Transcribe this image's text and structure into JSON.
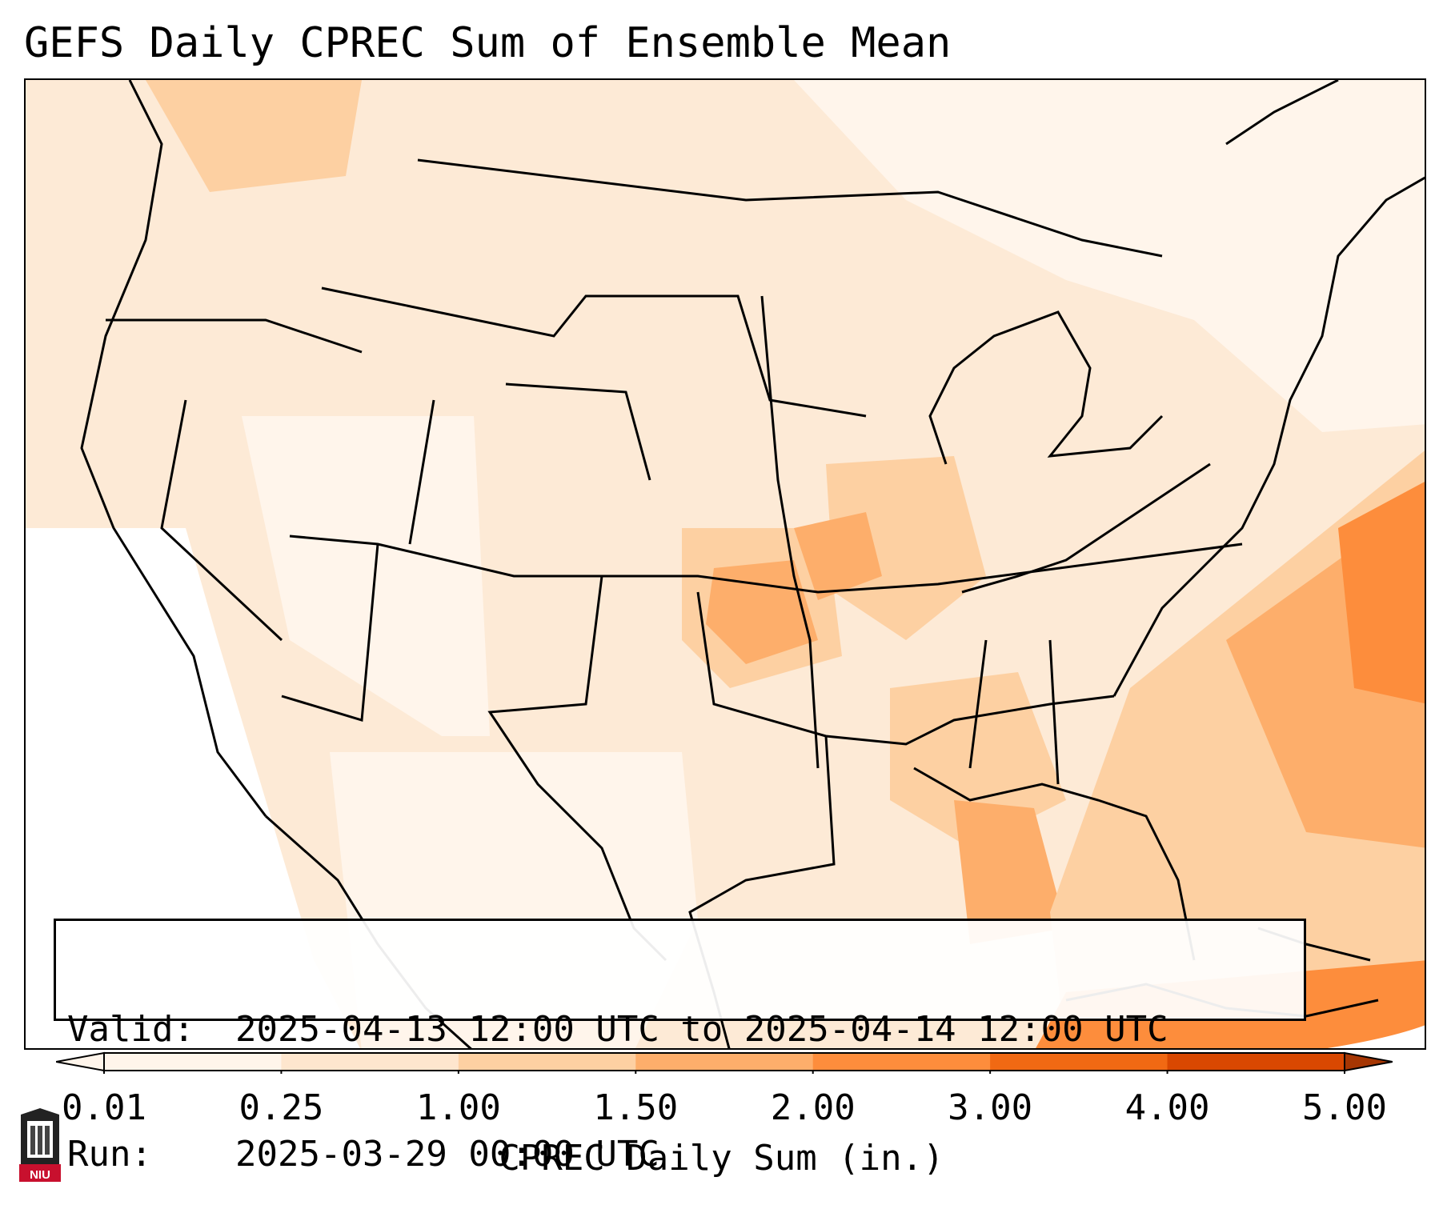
{
  "title": "GEFS Daily CPREC Sum of Ensemble Mean",
  "info": {
    "valid_label": "Valid:",
    "valid_value": "2025-04-13 12:00 UTC to 2025-04-14 12:00 UTC",
    "run_label": "Run:",
    "run_value": "2025-03-29 00:00 UTC"
  },
  "colorbar": {
    "label": "CPREC Daily Sum (in.)",
    "ticks": [
      "0.01",
      "0.25",
      "1.00",
      "1.50",
      "2.00",
      "3.00",
      "4.00",
      "5.00"
    ],
    "colors": [
      "#fff5eb",
      "#fee6ce",
      "#fdd0a2",
      "#fdae6b",
      "#fd8d3c",
      "#f16913",
      "#d94801",
      "#a63603"
    ]
  },
  "logo_text": "NIU",
  "icons": {
    "logo": "niu-logo-icon"
  }
}
